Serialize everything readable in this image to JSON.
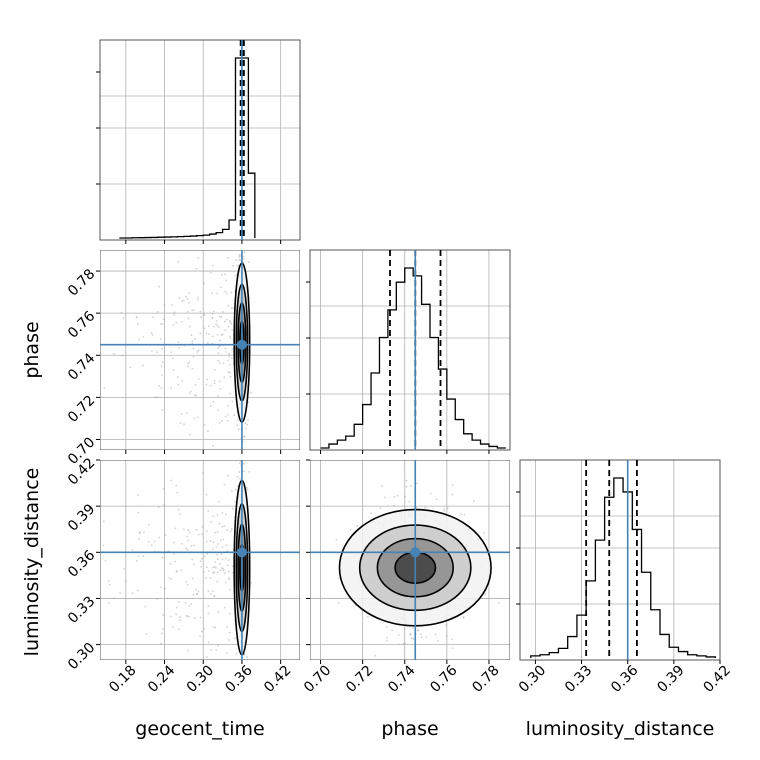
{
  "parameters": [
    "geocent_time",
    "phase",
    "luminosity_distance"
  ],
  "axis_labels": {
    "x": [
      "geocent_time",
      "phase",
      "luminosity_distance"
    ],
    "y": [
      "phase",
      "luminosity_distance"
    ]
  },
  "ticks": {
    "geocent_time": [
      "0.18",
      "0.24",
      "0.30",
      "0.36",
      "0.42"
    ],
    "phase": [
      "0.70",
      "0.72",
      "0.74",
      "0.76",
      "0.78"
    ],
    "luminosity_distance": [
      "0.30",
      "0.33",
      "0.36",
      "0.39",
      "0.42"
    ]
  },
  "colors": {
    "truth": "#4682b4",
    "histogram": "#000000",
    "points": "#9a9a9a",
    "grid": "#b0b0b0"
  },
  "chart_data": {
    "type": "corner",
    "grid": true,
    "truths": {
      "geocent_time": 0.36,
      "phase": 0.745,
      "luminosity_distance": 0.36
    },
    "ranges": {
      "geocent_time": [
        0.14,
        0.45
      ],
      "phase": [
        0.695,
        0.79
      ],
      "luminosity_distance": [
        0.29,
        0.42
      ]
    },
    "diagonal": [
      {
        "parameter": "geocent_time",
        "bin_edges": [
          0.17,
          0.18,
          0.19,
          0.2,
          0.21,
          0.22,
          0.23,
          0.24,
          0.25,
          0.26,
          0.27,
          0.28,
          0.29,
          0.3,
          0.31,
          0.32,
          0.33,
          0.34,
          0.35,
          0.36,
          0.37,
          0.38
        ],
        "counts": [
          0,
          0,
          0.3,
          0.4,
          0.6,
          0.8,
          1.1,
          1.3,
          1.6,
          1.9,
          2.3,
          2.7,
          3.3,
          4.0,
          5.5,
          7.5,
          12,
          25,
          250,
          250,
          90
        ],
        "quantiles": [
          0.358,
          0.361,
          0.363
        ]
      },
      {
        "parameter": "phase",
        "bin_edges": [
          0.7,
          0.704,
          0.708,
          0.712,
          0.716,
          0.72,
          0.724,
          0.728,
          0.732,
          0.736,
          0.74,
          0.744,
          0.748,
          0.752,
          0.756,
          0.76,
          0.764,
          0.768,
          0.772,
          0.776,
          0.78,
          0.784,
          0.788
        ],
        "counts": [
          0,
          5,
          10,
          15,
          30,
          55,
          95,
          140,
          175,
          210,
          228,
          218,
          182,
          140,
          100,
          62,
          36,
          18,
          10,
          5,
          2,
          0
        ],
        "quantiles": [
          0.733,
          0.745,
          0.757
        ]
      },
      {
        "parameter": "luminosity_distance",
        "bin_edges": [
          0.297,
          0.303,
          0.309,
          0.315,
          0.321,
          0.327,
          0.333,
          0.339,
          0.345,
          0.351,
          0.357,
          0.363,
          0.369,
          0.375,
          0.381,
          0.387,
          0.393,
          0.399,
          0.405,
          0.411,
          0.417
        ],
        "counts": [
          2,
          3,
          5,
          9,
          20,
          40,
          72,
          110,
          150,
          168,
          155,
          120,
          80,
          45,
          22,
          10,
          6,
          3,
          2,
          1
        ],
        "quantiles": [
          0.333,
          0.348,
          0.366
        ]
      }
    ],
    "off_diagonal": [
      {
        "x": "geocent_time",
        "y": "phase",
        "center": [
          0.36,
          0.746
        ],
        "spread": [
          0.004,
          0.012
        ],
        "contour_levels": 4
      },
      {
        "x": "geocent_time",
        "y": "luminosity_distance",
        "center": [
          0.36,
          0.35
        ],
        "spread": [
          0.004,
          0.018
        ],
        "contour_levels": 4
      },
      {
        "x": "phase",
        "y": "luminosity_distance",
        "center": [
          0.745,
          0.35
        ],
        "spread": [
          0.012,
          0.012
        ],
        "contour_levels": 4
      }
    ]
  }
}
